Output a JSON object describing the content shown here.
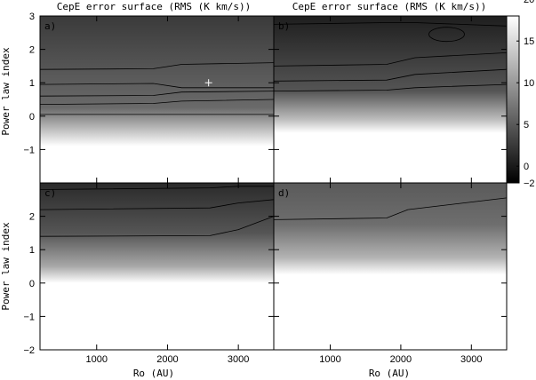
{
  "chart_data": [
    {
      "type": "heatmap",
      "panel_label": "a)",
      "title": "CepE error surface (RMS (K km/s))",
      "xlabel": "",
      "ylabel": "Power law index",
      "xlim": [
        200,
        3500
      ],
      "ylim": [
        -2,
        3
      ],
      "x_ticks": [],
      "y_ticks": [
        "−1",
        "0",
        "1",
        "2",
        "3"
      ],
      "contours_y_at_x": {
        "x": [
          200,
          1800,
          2200,
          3500
        ],
        "levels": [
          [
            0.05,
            0.05,
            0.05,
            0.05
          ],
          [
            0.35,
            0.38,
            0.45,
            0.5
          ],
          [
            0.6,
            0.62,
            0.72,
            0.75
          ],
          [
            0.95,
            0.98,
            0.85,
            0.85
          ],
          [
            1.4,
            1.42,
            1.55,
            1.6
          ]
        ]
      },
      "minimum_marker": {
        "x": 2580,
        "y": 1.0
      }
    },
    {
      "type": "heatmap",
      "panel_label": "b)",
      "title": "CepE error surface (RMS (K km/s))",
      "xlabel": "",
      "ylabel": "",
      "xlim": [
        200,
        3500
      ],
      "ylim": [
        -2,
        3
      ],
      "x_ticks": [],
      "y_ticks": [],
      "contours_y_at_x": {
        "x": [
          200,
          1800,
          2200,
          3500
        ],
        "levels": [
          [
            0.75,
            0.78,
            0.85,
            0.95
          ],
          [
            1.05,
            1.08,
            1.25,
            1.4
          ],
          [
            1.5,
            1.55,
            1.75,
            1.9
          ],
          [
            2.75,
            2.8,
            2.8,
            2.7
          ]
        ]
      },
      "colorbar": {
        "ticks": [
          "−2",
          "0",
          "5",
          "10",
          "15",
          "20"
        ],
        "range": [
          -2,
          18
        ]
      }
    },
    {
      "type": "heatmap",
      "panel_label": "c)",
      "xlabel": "Ro (AU)",
      "ylabel": "Power law index",
      "xlim": [
        200,
        3500
      ],
      "ylim": [
        -2,
        3
      ],
      "x_ticks": [
        "1000",
        "2000",
        "3000"
      ],
      "y_ticks": [
        "−2",
        "−1",
        "0",
        "1",
        "2"
      ],
      "contours_y_at_x": {
        "x": [
          200,
          2600,
          3000,
          3500
        ],
        "levels": [
          [
            1.4,
            1.42,
            1.6,
            2.0
          ],
          [
            2.2,
            2.25,
            2.4,
            2.5
          ],
          [
            2.8,
            2.85,
            2.9,
            2.9
          ]
        ]
      }
    },
    {
      "type": "heatmap",
      "panel_label": "d)",
      "xlabel": "Ro (AU)",
      "ylabel": "",
      "xlim": [
        200,
        3500
      ],
      "ylim": [
        -2,
        3
      ],
      "x_ticks": [
        "1000",
        "2000",
        "3000"
      ],
      "y_ticks": [],
      "contours_y_at_x": {
        "x": [
          200,
          1800,
          2100,
          3500
        ],
        "levels": [
          [
            1.9,
            1.95,
            2.2,
            2.55
          ]
        ]
      }
    }
  ]
}
